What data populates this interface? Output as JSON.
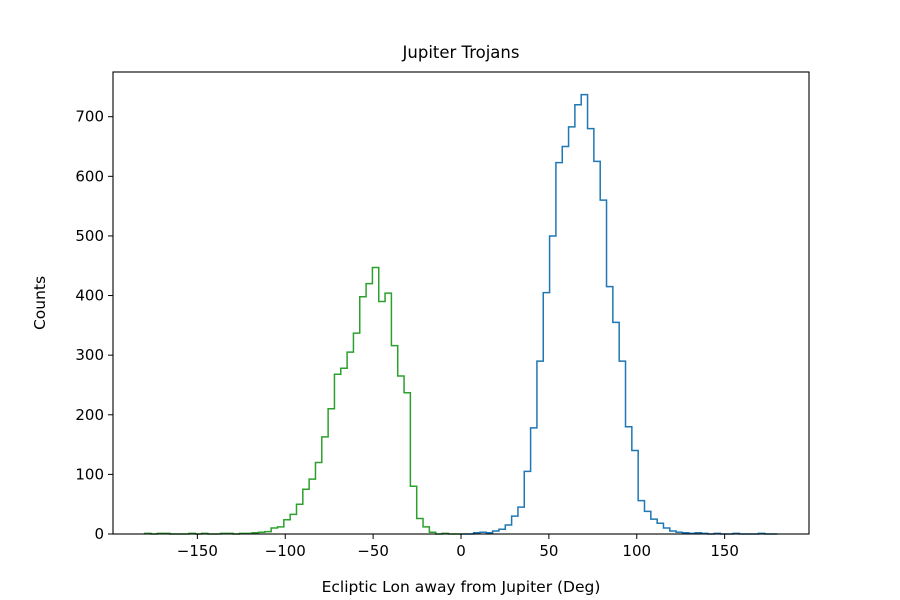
{
  "chart_data": {
    "type": "histogram",
    "title": "Jupiter Trojans",
    "xlabel": "Ecliptic Lon away from Jupiter (Deg)",
    "ylabel": "Counts",
    "xlim": [
      -198,
      198
    ],
    "ylim": [
      0,
      775
    ],
    "xticks": [
      -150,
      -100,
      -50,
      0,
      50,
      100,
      150
    ],
    "yticks": [
      0,
      100,
      200,
      300,
      400,
      500,
      600,
      700
    ],
    "xtick_labels": [
      "−150",
      "−100",
      "−50",
      "0",
      "50",
      "100",
      "150"
    ],
    "ytick_labels": [
      "0",
      "100",
      "200",
      "300",
      "400",
      "500",
      "600",
      "700"
    ],
    "grid": false,
    "bin_width": 3.6,
    "series": [
      {
        "color": "#1f77b4",
        "edges": [
          0,
          3.6,
          7.2,
          10.8,
          14.4,
          18,
          21.6,
          25.2,
          28.8,
          32.4,
          36,
          39.6,
          43.2,
          46.8,
          50.4,
          54,
          57.6,
          61.2,
          64.8,
          68.4,
          72,
          75.6,
          79.2,
          82.8,
          86.4,
          90,
          93.6,
          97.2,
          100.8,
          104.4,
          108,
          111.6,
          115.2,
          118.8,
          122.4,
          126,
          129.6,
          133.2,
          136.8,
          140.4,
          144,
          147.6,
          151.2,
          154.8,
          158.4,
          162,
          165.6,
          169.2,
          172.8,
          176.4,
          180
        ],
        "counts": [
          0,
          0,
          2,
          3,
          2,
          5,
          8,
          15,
          30,
          45,
          105,
          178,
          290,
          405,
          500,
          623,
          650,
          683,
          720,
          737,
          680,
          625,
          560,
          415,
          355,
          290,
          180,
          140,
          56,
          38,
          25,
          18,
          10,
          5,
          3,
          2,
          1,
          2,
          1,
          0,
          1,
          0,
          0,
          1,
          0,
          0,
          0,
          1,
          0,
          0
        ]
      },
      {
        "color": "#2ca02c",
        "edges": [
          -180,
          -176.4,
          -172.8,
          -169.2,
          -165.6,
          -162,
          -158.4,
          -154.8,
          -151.2,
          -147.6,
          -144,
          -140.4,
          -136.8,
          -133.2,
          -129.6,
          -126,
          -122.4,
          -118.8,
          -115.2,
          -111.6,
          -108,
          -104.4,
          -100.8,
          -97.2,
          -93.6,
          -90,
          -86.4,
          -82.8,
          -79.2,
          -75.6,
          -72,
          -68.4,
          -64.8,
          -61.2,
          -57.6,
          -54,
          -50.4,
          -46.8,
          -43.2,
          -39.6,
          -36,
          -32.4,
          -28.8,
          -25.2,
          -21.6,
          -18,
          -14.4,
          -10.8,
          -7.2,
          -3.6,
          0
        ],
        "counts": [
          1,
          0,
          1,
          1,
          0,
          0,
          0,
          1,
          0,
          1,
          0,
          0,
          1,
          1,
          0,
          1,
          1,
          2,
          3,
          4,
          10,
          12,
          24,
          33,
          50,
          75,
          92,
          120,
          163,
          210,
          268,
          278,
          305,
          337,
          398,
          420,
          447,
          390,
          404,
          316,
          265,
          237,
          80,
          26,
          12,
          3,
          0,
          1,
          0,
          0
        ]
      }
    ]
  }
}
